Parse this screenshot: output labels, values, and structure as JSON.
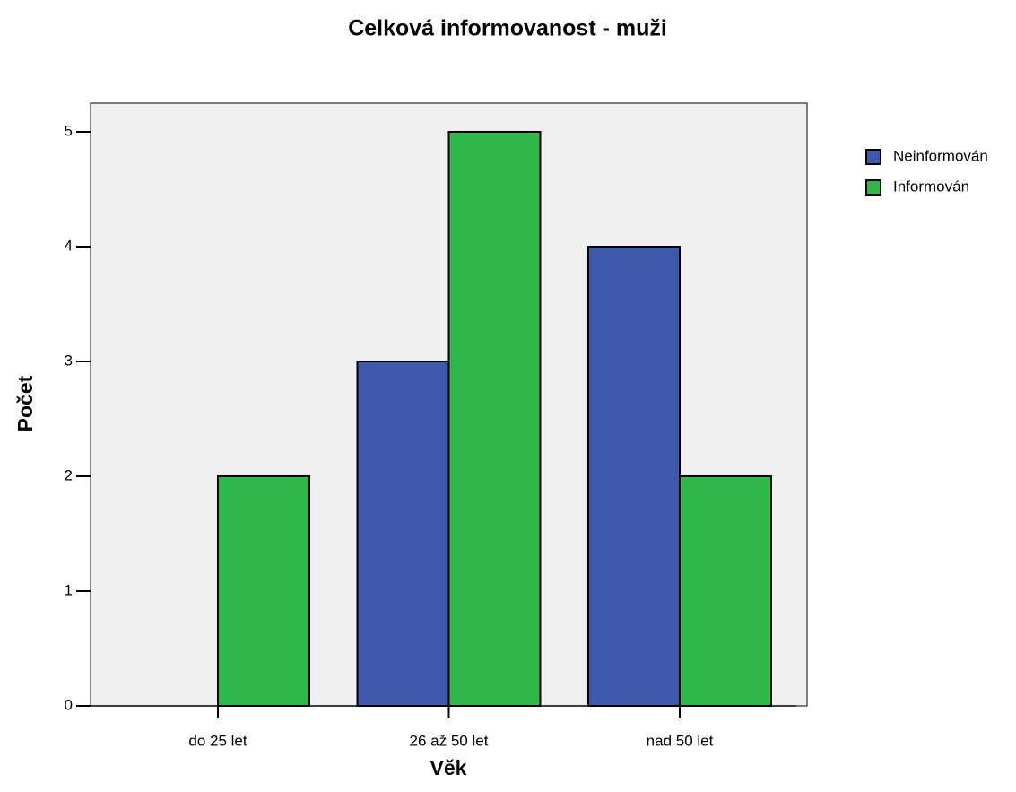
{
  "chart_data": {
    "type": "bar",
    "title": "Celková informovanost - muži",
    "x_label": "Věk",
    "y_label": "Počet",
    "categories": [
      "do 25 let",
      "26 až 50 let",
      "nad 50 let"
    ],
    "series": [
      {
        "name": "Neinformován",
        "color": "#3e58ac",
        "values": [
          0,
          3,
          4
        ]
      },
      {
        "name": "Informován",
        "color": "#2eb84a",
        "values": [
          2,
          5,
          2
        ]
      }
    ],
    "ylim": [
      0,
      5.25
    ],
    "yticks": [
      0,
      1,
      2,
      3,
      4,
      5
    ],
    "legend": "right"
  }
}
